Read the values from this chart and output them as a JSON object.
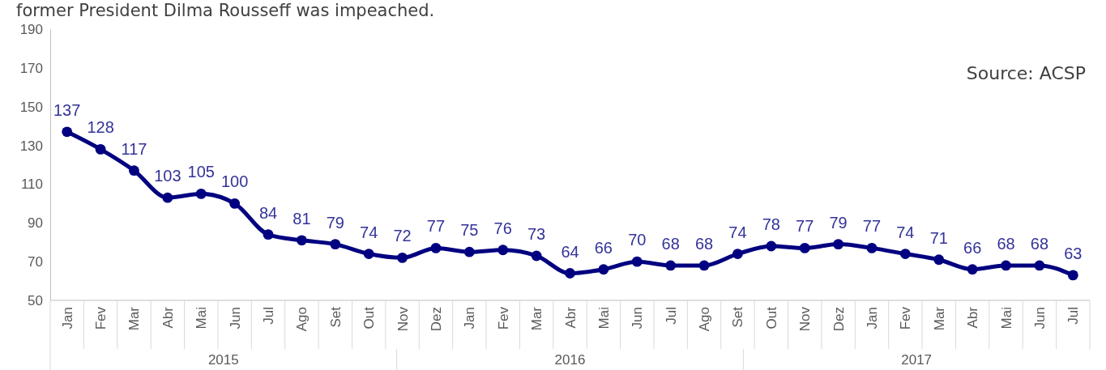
{
  "chart_data": {
    "type": "line",
    "title": "former President Dilma Rousseff was impeached.",
    "categories": [
      "Jan",
      "Fev",
      "Mar",
      "Abr",
      "Mai",
      "Jun",
      "Jul",
      "Ago",
      "Set",
      "Out",
      "Nov",
      "Dez",
      "Jan",
      "Fev",
      "Mar",
      "Abr",
      "Mai",
      "Jun",
      "Jul",
      "Ago",
      "Set",
      "Out",
      "Nov",
      "Dez",
      "Jan",
      "Fev",
      "Mar",
      "Abr",
      "Mai",
      "Jun",
      "Jul"
    ],
    "series": [
      {
        "color": "#000080",
        "values": [
          137,
          128,
          117,
          103,
          105,
          100,
          84,
          81,
          79,
          74,
          72,
          77,
          75,
          76,
          73,
          64,
          66,
          70,
          68,
          68,
          74,
          78,
          77,
          79,
          77,
          74,
          71,
          66,
          68,
          68,
          63
        ]
      }
    ],
    "ylim": [
      50,
      190
    ],
    "yticks": [
      50,
      70,
      90,
      110,
      130,
      150,
      170,
      190
    ],
    "data_labels": true,
    "marker": "circle",
    "line_style": "solid",
    "grid": false,
    "annotations": [
      "Source: ACSP",
      "2015",
      "2016",
      "2017"
    ]
  }
}
